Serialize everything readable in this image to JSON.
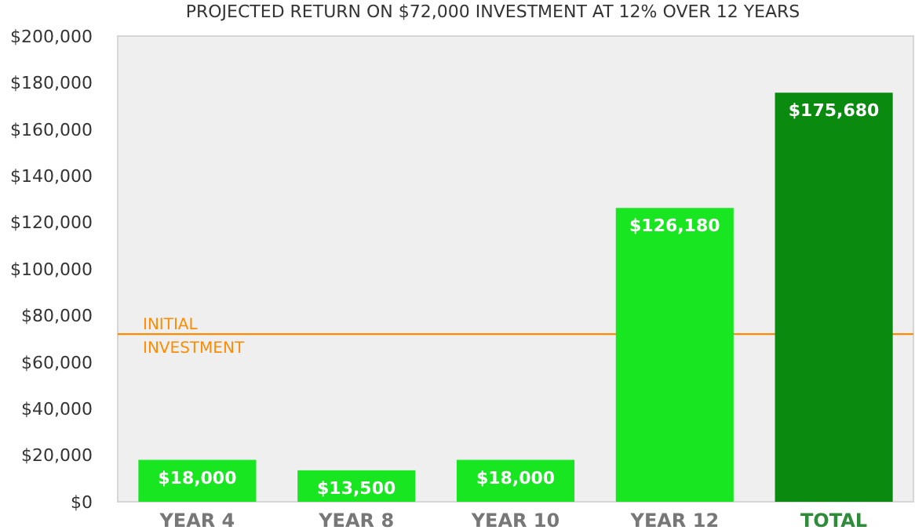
{
  "chart_data": {
    "type": "bar",
    "title": "PROJECTED RETURN ON $72,000 INVESTMENT AT 12% OVER 12 YEARS",
    "categories": [
      "YEAR 4",
      "YEAR 8",
      "YEAR 10",
      "YEAR 12",
      "TOTAL"
    ],
    "values": [
      18000,
      13500,
      18000,
      126180,
      175680
    ],
    "colors": [
      "#18e620",
      "#18e620",
      "#18e620",
      "#18e620",
      "#0a8a0e"
    ],
    "value_labels": [
      "$18,000",
      "$13,500",
      "$18,000",
      "$126,180",
      "$175,680"
    ],
    "ylim": [
      0,
      200000
    ],
    "yticks": [
      {
        "value": 0,
        "label": "$0"
      },
      {
        "value": 20000,
        "label": "$20,000"
      },
      {
        "value": 40000,
        "label": "$40,000"
      },
      {
        "value": 60000,
        "label": "$60,000"
      },
      {
        "value": 80000,
        "label": "$80,000"
      },
      {
        "value": 100000,
        "label": "$100,000"
      },
      {
        "value": 120000,
        "label": "$120,000"
      },
      {
        "value": 140000,
        "label": "$140,000"
      },
      {
        "value": 160000,
        "label": "$160,000"
      },
      {
        "value": 180000,
        "label": "$180,000"
      },
      {
        "value": 200000,
        "label": "$200,000"
      }
    ],
    "ref_lines": [
      {
        "axis": "y",
        "value": 72000,
        "label": "INITIAL INVESTMENT",
        "color": "#ff8c00"
      }
    ],
    "grid": false
  }
}
